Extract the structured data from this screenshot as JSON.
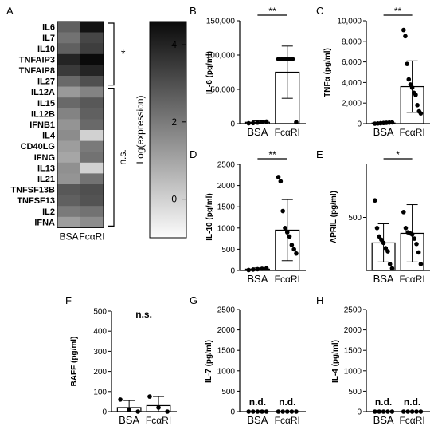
{
  "heatmap": {
    "panel": "A",
    "genes": [
      "IL6",
      "IL7",
      "IL10",
      "TNFAIP3",
      "TNFAIP8",
      "IL27",
      "IL12A",
      "IL15",
      "IL12B",
      "IFNB1",
      "IL4",
      "CD40LG",
      "IFNG",
      "IL13",
      "IL21",
      "TNFSF13B",
      "TNFSF13",
      "IL2",
      "IFNA"
    ],
    "columns": [
      "BSA",
      "FcαRI"
    ],
    "values": [
      [
        2.6,
        4.4
      ],
      [
        2.2,
        3.2
      ],
      [
        2.6,
        3.4
      ],
      [
        4.0,
        4.6
      ],
      [
        3.5,
        4.0
      ],
      [
        2.4,
        3.0
      ],
      [
        1.3,
        1.8
      ],
      [
        2.4,
        2.8
      ],
      [
        1.8,
        2.6
      ],
      [
        1.4,
        2.4
      ],
      [
        1.6,
        0.0
      ],
      [
        1.2,
        2.0
      ],
      [
        1.0,
        2.2
      ],
      [
        1.5,
        0.0
      ],
      [
        1.4,
        2.2
      ],
      [
        2.8,
        3.0
      ],
      [
        2.6,
        2.9
      ],
      [
        2.0,
        2.2
      ],
      [
        1.2,
        1.6
      ]
    ],
    "colorbar": {
      "label": "Log(expression)",
      "ticks": [
        0,
        2,
        4
      ],
      "range": [
        -1,
        4.6
      ]
    },
    "brackets": [
      {
        "label": "*",
        "from": "IL6",
        "to": "IL27"
      },
      {
        "label": "n.s.",
        "from": "IL12A",
        "to": "IFNA"
      }
    ]
  },
  "chart_data": [
    {
      "type": "bar",
      "panel": "B",
      "ylabel": "IL-6 (pg/ml)",
      "categories": [
        "BSA",
        "FcαRI"
      ],
      "values": [
        2000,
        75000
      ],
      "error": [
        2000,
        38000
      ],
      "points": [
        [
          500,
          800,
          1500,
          2500,
          3000
        ],
        [
          94000,
          94000,
          94000,
          94000,
          94000,
          2000
        ]
      ],
      "ylim": [
        0,
        150000
      ],
      "yticks": [
        "0",
        "50,000",
        "100,000",
        "150,000"
      ],
      "yvals": [
        0,
        50000,
        100000,
        150000
      ],
      "significance": "**"
    },
    {
      "type": "bar",
      "panel": "C",
      "ylabel": "TNFα (pg/ml)",
      "categories": [
        "BSA",
        "FcαRI"
      ],
      "values": [
        60,
        3600
      ],
      "error": [
        60,
        2500
      ],
      "points": [
        [
          0,
          20,
          40,
          60,
          80,
          100,
          120
        ],
        [
          9100,
          8500,
          5800,
          4300,
          3800,
          3500,
          3000,
          2800,
          1800,
          1200,
          1000
        ]
      ],
      "ylim": [
        0,
        10000
      ],
      "yticks": [
        "0",
        "2,000",
        "4,000",
        "6,000",
        "8,000",
        "10,000"
      ],
      "yvals": [
        0,
        2000,
        4000,
        6000,
        8000,
        10000
      ],
      "significance": "**"
    },
    {
      "type": "bar",
      "panel": "D",
      "ylabel": "IL-10 (pg/ml)",
      "categories": [
        "BSA",
        "FcαRI"
      ],
      "values": [
        30,
        950
      ],
      "error": [
        30,
        720
      ],
      "points": [
        [
          10,
          20,
          30,
          40,
          50
        ],
        [
          2200,
          2100,
          1400,
          1000,
          900,
          800,
          600,
          500,
          400
        ]
      ],
      "ylim": [
        0,
        2500
      ],
      "yticks": [
        "0",
        "500",
        "1000",
        "1500",
        "2000",
        "2500"
      ],
      "yvals": [
        0,
        500,
        1000,
        1500,
        2000,
        2500
      ],
      "significance": "**"
    },
    {
      "type": "bar",
      "panel": "E",
      "ylabel": "APRIL (pg/ml)",
      "categories": [
        "BSA",
        "FcαRI"
      ],
      "values": [
        260,
        350
      ],
      "error": [
        180,
        270
      ],
      "points": [
        [
          660,
          400,
          320,
          290,
          260,
          210,
          180,
          60,
          20
        ],
        [
          550,
          400,
          360,
          350,
          340,
          300,
          250,
          170,
          60
        ]
      ],
      "ylim": [
        0,
        1000
      ],
      "yticks": [
        "500"
      ],
      "yvals": [
        500
      ],
      "significance": "*"
    },
    {
      "type": "bar",
      "panel": "F",
      "ylabel": "BAFF (pg/ml)",
      "categories": [
        "BSA",
        "FcαRI"
      ],
      "values": [
        20,
        30
      ],
      "error": [
        35,
        45
      ],
      "points": [
        [
          60,
          10,
          0
        ],
        [
          75,
          20,
          0
        ]
      ],
      "ylim": [
        0,
        500
      ],
      "yticks": [
        "0",
        "100",
        "200",
        "300",
        "400",
        "500"
      ],
      "yvals": [
        0,
        100,
        200,
        300,
        400,
        500
      ],
      "significance": "n.s."
    },
    {
      "type": "bar",
      "panel": "G",
      "ylabel": "IL-7 (pg/ml)",
      "categories": [
        "BSA",
        "FcαRI"
      ],
      "values": [
        0,
        0
      ],
      "error": [
        0,
        0
      ],
      "points": [
        [
          0,
          0,
          0,
          0,
          0
        ],
        [
          0,
          0,
          0,
          0,
          0
        ]
      ],
      "ylim": [
        0,
        2500
      ],
      "yticks": [
        "0",
        "500",
        "1000",
        "1500",
        "2000",
        "2500"
      ],
      "yvals": [
        0,
        500,
        1000,
        1500,
        2000,
        2500
      ],
      "bar_labels": [
        "n.d.",
        "n.d."
      ]
    },
    {
      "type": "bar",
      "panel": "H",
      "ylabel": "IL-4 (pg/ml)",
      "categories": [
        "BSA",
        "FcαRI"
      ],
      "values": [
        0,
        0
      ],
      "error": [
        0,
        0
      ],
      "points": [
        [
          0,
          0,
          0,
          0,
          0
        ],
        [
          0,
          0,
          0,
          0,
          0
        ]
      ],
      "ylim": [
        0,
        2500
      ],
      "yticks": [
        "0",
        "500",
        "1000",
        "1500",
        "2000",
        "2500"
      ],
      "yvals": [
        0,
        500,
        1000,
        1500,
        2000,
        2500
      ],
      "bar_labels": [
        "n.d.",
        "n.d."
      ]
    }
  ]
}
